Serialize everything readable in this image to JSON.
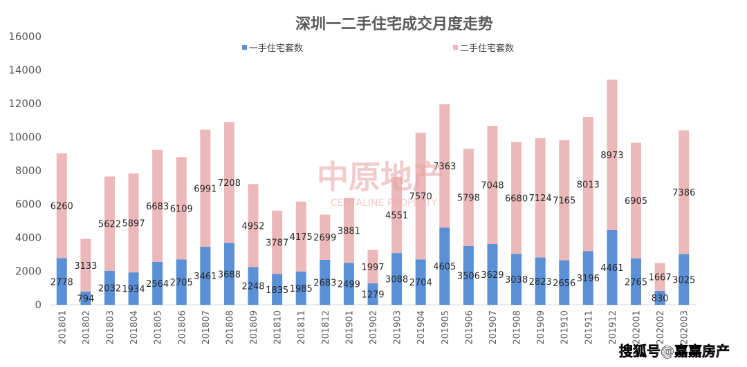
{
  "chart_data": {
    "type": "bar",
    "stacked": true,
    "title": "深圳一二手住宅成交月度走势",
    "categories": [
      "201801",
      "201802",
      "201803",
      "201804",
      "201805",
      "201806",
      "201807",
      "201808",
      "201809",
      "201810",
      "201811",
      "201812",
      "201901",
      "201902",
      "201903",
      "201904",
      "201905",
      "201906",
      "201907",
      "201908",
      "201909",
      "201910",
      "201911",
      "201912",
      "202001",
      "202002",
      "202003"
    ],
    "series": [
      {
        "name": "一手住宅套数",
        "color": "#5b8fd6",
        "values": [
          2778,
          794,
          2032,
          1934,
          2564,
          2705,
          3461,
          3688,
          2248,
          1835,
          1985,
          2683,
          2499,
          1279,
          3088,
          2704,
          4605,
          3506,
          3629,
          3038,
          2823,
          2656,
          3196,
          4461,
          2765,
          830,
          3025
        ]
      },
      {
        "name": "二手住宅套数",
        "color": "#ebb9b9",
        "values": [
          6260,
          3133,
          5622,
          5897,
          6683,
          6109,
          6991,
          7208,
          4952,
          3787,
          4175,
          2699,
          3881,
          1997,
          4551,
          7570,
          7363,
          5798,
          7048,
          6680,
          7124,
          7165,
          8013,
          8973,
          6905,
          1667,
          7386
        ]
      }
    ],
    "ylim": [
      0,
      16000
    ],
    "yticks": [
      "0",
      "2000",
      "4000",
      "6000",
      "8000",
      "10000",
      "12000",
      "14000",
      "16000"
    ],
    "legend_position": "top",
    "grid": false
  },
  "watermarks": {
    "center_cn": "中原地产",
    "center_en": "CENTALINE PROPERTY",
    "bottom_right": "搜狐号@嘉嘉房产"
  }
}
